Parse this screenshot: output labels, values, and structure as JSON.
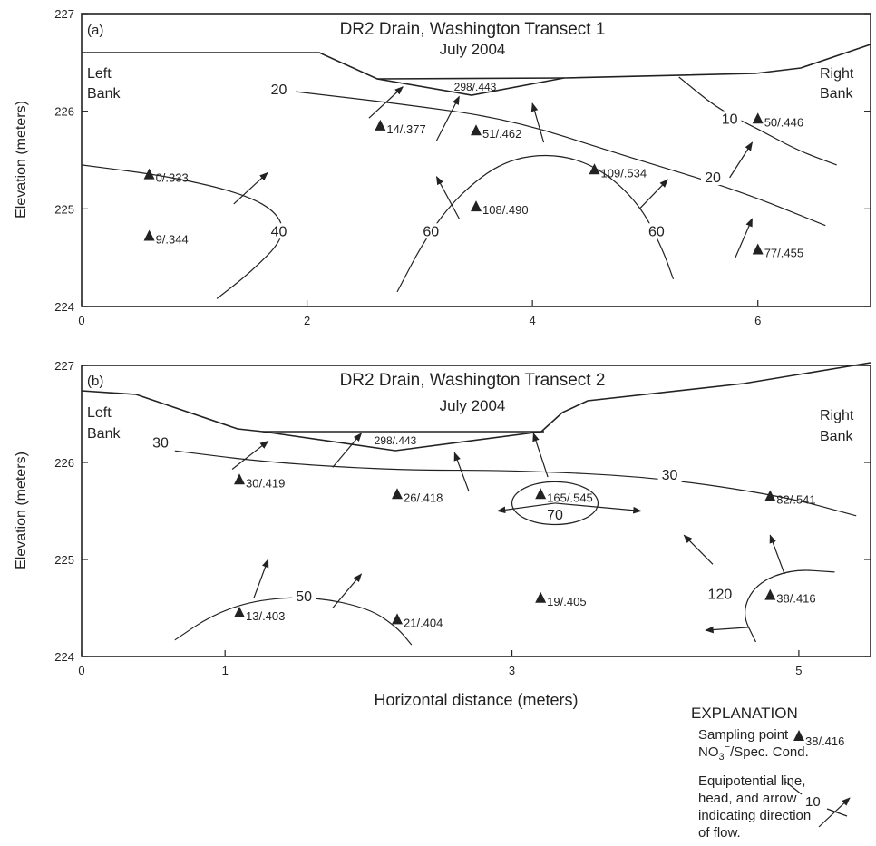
{
  "chart_data": [
    {
      "type": "scatter",
      "panel_label": "(a)",
      "title": "DR2 Drain, Washington Transect 1",
      "subtitle": "July 2004",
      "ylabel": "Elevation (meters)",
      "xlabel": "",
      "xlim": [
        0,
        7
      ],
      "ylim": [
        224,
        227
      ],
      "x_ticks": [
        0,
        2,
        4,
        6
      ],
      "y_ticks": [
        224,
        225,
        226,
        227
      ],
      "bank_labels": [
        "Left",
        "Bank",
        "Right",
        "Bank"
      ],
      "water_label": "298/.443",
      "points": [
        {
          "x": 0.6,
          "y": 225.35,
          "label": "0/.333"
        },
        {
          "x": 0.6,
          "y": 224.72,
          "label": "9/.344"
        },
        {
          "x": 2.65,
          "y": 225.85,
          "label": "14/.377"
        },
        {
          "x": 3.5,
          "y": 225.8,
          "label": "51/.462"
        },
        {
          "x": 3.5,
          "y": 225.02,
          "label": "108/.490"
        },
        {
          "x": 4.55,
          "y": 225.4,
          "label": "109/.534"
        },
        {
          "x": 6.0,
          "y": 225.92,
          "label": "50/.446"
        },
        {
          "x": 6.0,
          "y": 224.58,
          "label": "77/.455"
        }
      ],
      "contours": [
        {
          "label": "20",
          "points": [
            [
              1.9,
              226.2
            ],
            [
              2.8,
              226.08
            ],
            [
              3.8,
              225.92
            ],
            [
              4.8,
              225.55
            ],
            [
              5.8,
              225.2
            ],
            [
              6.6,
              224.83
            ]
          ],
          "label_at": [
            [
              1.75,
              226.2
            ],
            [
              5.6,
              225.3
            ]
          ]
        },
        {
          "label": "10",
          "points": [
            [
              5.3,
              226.35
            ],
            [
              5.65,
              226.02
            ],
            [
              6.0,
              225.82
            ],
            [
              6.35,
              225.6
            ],
            [
              6.7,
              225.45
            ]
          ],
          "label_at": [
            [
              5.75,
              225.9
            ]
          ]
        },
        {
          "label": "40",
          "points": [
            [
              0.0,
              225.45
            ],
            [
              0.8,
              225.33
            ],
            [
              1.45,
              225.15
            ],
            [
              1.75,
              224.95
            ],
            [
              1.8,
              224.7
            ],
            [
              1.5,
              224.35
            ],
            [
              1.2,
              224.08
            ]
          ],
          "label_at": [
            [
              1.75,
              224.75
            ]
          ]
        },
        {
          "label": "60",
          "points": [
            [
              2.8,
              224.15
            ],
            [
              3.05,
              224.7
            ],
            [
              3.35,
              225.15
            ],
            [
              3.75,
              225.5
            ],
            [
              4.2,
              225.57
            ],
            [
              4.6,
              225.42
            ],
            [
              4.95,
              225.05
            ],
            [
              5.15,
              224.6
            ],
            [
              5.25,
              224.28
            ]
          ],
          "label_at": [
            [
              3.1,
              224.75
            ],
            [
              5.1,
              224.75
            ]
          ]
        }
      ],
      "arrows": [
        {
          "from": [
            2.55,
            225.93
          ],
          "to": [
            2.85,
            226.25
          ]
        },
        {
          "from": [
            3.15,
            225.7
          ],
          "to": [
            3.35,
            226.15
          ]
        },
        {
          "from": [
            4.1,
            225.68
          ],
          "to": [
            4.0,
            226.08
          ]
        },
        {
          "from": [
            1.35,
            225.05
          ],
          "to": [
            1.65,
            225.37
          ]
        },
        {
          "from": [
            3.35,
            224.9
          ],
          "to": [
            3.15,
            225.33
          ]
        },
        {
          "from": [
            4.95,
            225.0
          ],
          "to": [
            5.2,
            225.3
          ]
        },
        {
          "from": [
            5.75,
            225.32
          ],
          "to": [
            5.95,
            225.68
          ]
        },
        {
          "from": [
            5.8,
            224.5
          ],
          "to": [
            5.95,
            224.9
          ]
        }
      ]
    },
    {
      "type": "scatter",
      "panel_label": "(b)",
      "title": "DR2 Drain, Washington Transect 2",
      "subtitle": "July 2004",
      "ylabel": "Elevation (meters)",
      "xlabel": "Horizontal distance (meters)",
      "xlim": [
        0,
        5.5
      ],
      "ylim": [
        224,
        227
      ],
      "x_ticks": [
        0,
        1,
        3,
        5
      ],
      "y_ticks": [
        224,
        225,
        226,
        227
      ],
      "bank_labels": [
        "Left",
        "Bank",
        "Right",
        "Bank"
      ],
      "water_label": "298/.443",
      "points": [
        {
          "x": 1.1,
          "y": 225.82,
          "label": "30/.419"
        },
        {
          "x": 2.2,
          "y": 225.67,
          "label": "26/.418"
        },
        {
          "x": 3.2,
          "y": 225.67,
          "label": "165/.545"
        },
        {
          "x": 4.8,
          "y": 225.65,
          "label": "82/.541"
        },
        {
          "x": 1.1,
          "y": 224.45,
          "label": "13/.403"
        },
        {
          "x": 2.2,
          "y": 224.38,
          "label": "21/.404"
        },
        {
          "x": 3.2,
          "y": 224.6,
          "label": "19/.405"
        },
        {
          "x": 4.8,
          "y": 224.63,
          "label": "38/.416"
        }
      ],
      "contours": [
        {
          "label": "30",
          "points": [
            [
              0.65,
              226.12
            ],
            [
              1.3,
              226.0
            ],
            [
              2.2,
              225.92
            ],
            [
              3.0,
              225.92
            ],
            [
              4.0,
              225.85
            ],
            [
              4.9,
              225.65
            ],
            [
              5.4,
              225.45
            ]
          ],
          "label_at": [
            [
              0.55,
              226.18
            ],
            [
              4.1,
              225.85
            ]
          ]
        },
        {
          "label": "50",
          "points": [
            [
              0.65,
              224.17
            ],
            [
              0.9,
              224.42
            ],
            [
              1.2,
              224.58
            ],
            [
              1.6,
              224.62
            ],
            [
              2.0,
              224.5
            ],
            [
              2.2,
              224.3
            ],
            [
              2.3,
              224.12
            ]
          ],
          "label_at": [
            [
              1.55,
              224.6
            ]
          ]
        },
        {
          "label": "120",
          "points": [
            [
              4.7,
              224.15
            ],
            [
              4.6,
              224.45
            ],
            [
              4.7,
              224.75
            ],
            [
              4.95,
              224.9
            ],
            [
              5.25,
              224.87
            ]
          ],
          "label_at": [
            [
              4.45,
              224.62
            ]
          ]
        }
      ],
      "closed_contours": [
        {
          "label": "70",
          "cx": 3.3,
          "cy": 225.58,
          "rx": 0.3,
          "ry": 0.22,
          "label_at": [
            [
              3.3,
              225.45
            ]
          ]
        }
      ],
      "arrows": [
        {
          "from": [
            1.05,
            225.93
          ],
          "to": [
            1.3,
            226.22
          ]
        },
        {
          "from": [
            1.75,
            225.95
          ],
          "to": [
            1.95,
            226.3
          ]
        },
        {
          "from": [
            2.7,
            225.7
          ],
          "to": [
            2.6,
            226.1
          ]
        },
        {
          "from": [
            3.25,
            225.85
          ],
          "to": [
            3.15,
            226.3
          ]
        },
        {
          "from": [
            3.3,
            225.58
          ],
          "to": [
            2.9,
            225.5
          ]
        },
        {
          "from": [
            3.3,
            225.58
          ],
          "to": [
            3.9,
            225.5
          ]
        },
        {
          "from": [
            1.2,
            224.6
          ],
          "to": [
            1.3,
            225.0
          ]
        },
        {
          "from": [
            1.75,
            224.5
          ],
          "to": [
            1.95,
            224.85
          ]
        },
        {
          "from": [
            4.4,
            224.95
          ],
          "to": [
            4.2,
            225.25
          ]
        },
        {
          "from": [
            4.9,
            224.85
          ],
          "to": [
            4.8,
            225.25
          ]
        },
        {
          "from": [
            4.65,
            224.3
          ],
          "to": [
            4.35,
            224.27
          ]
        }
      ]
    }
  ],
  "explanation": {
    "title": "EXPLANATION",
    "sampling_label_1": "Sampling point",
    "sampling_label_2a": "NO",
    "sampling_label_2b": "3",
    "sampling_label_2c": "−",
    "sampling_label_2d": "/Spec. Cond.",
    "sampling_example": "38/.416",
    "equip_label_1": "Equipotential line,",
    "equip_label_2": "head, and arrow",
    "equip_label_3": "indicating direction",
    "equip_label_4": "of flow.",
    "equip_example": "10"
  }
}
